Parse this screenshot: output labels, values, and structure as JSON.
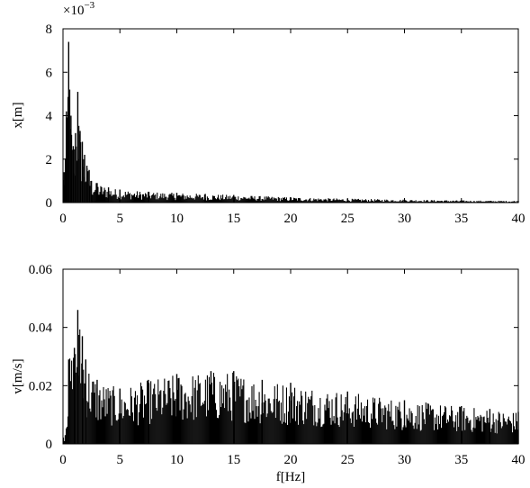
{
  "chart_data": [
    {
      "type": "bar",
      "xlabel": "",
      "ylabel": "x[m]",
      "xlim": [
        0,
        40
      ],
      "ylim": [
        0,
        8
      ],
      "y_scale_multiplier": "×10",
      "y_scale_exponent": "−3",
      "x_ticks": [
        "0",
        "5",
        "10",
        "15",
        "20",
        "25",
        "30",
        "35",
        "40"
      ],
      "y_ticks": [
        "0",
        "2",
        "4",
        "6",
        "8"
      ],
      "grid": false,
      "series": [
        {
          "x_hz": [
            0.1,
            0.3,
            0.5,
            0.7,
            0.9,
            1.1,
            1.3,
            1.5,
            1.7,
            1.9,
            2.1,
            2.3,
            2.5,
            3.0,
            4.0,
            5.0,
            7.5,
            10.0,
            12.5,
            15.0,
            20.0,
            25.0,
            30.0,
            35.0,
            40.0
          ],
          "amplitude_x1e3_m": [
            1.4,
            4.2,
            7.4,
            4.0,
            2.6,
            3.2,
            5.1,
            3.3,
            2.8,
            2.2,
            1.7,
            1.5,
            1.0,
            0.9,
            0.7,
            0.6,
            0.5,
            0.45,
            0.4,
            0.35,
            0.25,
            0.18,
            0.14,
            0.1,
            0.08
          ]
        }
      ]
    },
    {
      "type": "bar",
      "xlabel": "f[Hz]",
      "ylabel": "v[m/s]",
      "xlim": [
        0,
        40
      ],
      "ylim": [
        0,
        0.06
      ],
      "x_ticks": [
        "0",
        "5",
        "10",
        "15",
        "20",
        "25",
        "30",
        "35",
        "40"
      ],
      "y_ticks": [
        "0",
        "0.02",
        "0.04",
        "0.06"
      ],
      "grid": false,
      "series": [
        {
          "x_hz": [
            0.2,
            0.5,
            1.0,
            1.3,
            1.7,
            2.0,
            3.0,
            5.0,
            7.5,
            10.0,
            13.0,
            15.0,
            17.5,
            20.0,
            25.0,
            30.0,
            35.0,
            37.5,
            40.0
          ],
          "amplitude_m_s": [
            0.003,
            0.029,
            0.033,
            0.046,
            0.037,
            0.029,
            0.022,
            0.019,
            0.022,
            0.024,
            0.025,
            0.025,
            0.022,
            0.021,
            0.018,
            0.015,
            0.013,
            0.012,
            0.011
          ]
        }
      ]
    }
  ]
}
